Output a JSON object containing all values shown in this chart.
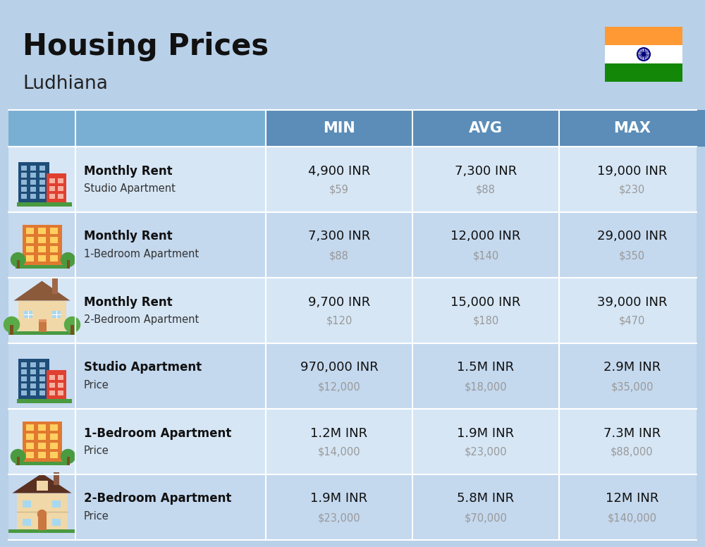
{
  "title": "Housing Prices",
  "subtitle": "Ludhiana",
  "bg_color": "#b8d0e8",
  "header_bg": "#5b8db8",
  "header_col01_bg": "#7aafd4",
  "row_bg_odd": "#d6e6f5",
  "row_bg_even": "#c4d8ee",
  "col_headers": [
    "MIN",
    "AVG",
    "MAX"
  ],
  "rows": [
    {
      "bold_label": "Monthly Rent",
      "sub_label": "Studio Apartment",
      "min_inr": "4,900 INR",
      "min_usd": "$59",
      "avg_inr": "7,300 INR",
      "avg_usd": "$88",
      "max_inr": "19,000 INR",
      "max_usd": "$230",
      "icon": "studio_blue"
    },
    {
      "bold_label": "Monthly Rent",
      "sub_label": "1-Bedroom Apartment",
      "min_inr": "7,300 INR",
      "min_usd": "$88",
      "avg_inr": "12,000 INR",
      "avg_usd": "$140",
      "max_inr": "29,000 INR",
      "max_usd": "$350",
      "icon": "apt_orange"
    },
    {
      "bold_label": "Monthly Rent",
      "sub_label": "2-Bedroom Apartment",
      "min_inr": "9,700 INR",
      "min_usd": "$120",
      "avg_inr": "15,000 INR",
      "avg_usd": "$180",
      "max_inr": "39,000 INR",
      "max_usd": "$470",
      "icon": "house_tan"
    },
    {
      "bold_label": "Studio Apartment",
      "sub_label": "Price",
      "min_inr": "970,000 INR",
      "min_usd": "$12,000",
      "avg_inr": "1.5M INR",
      "avg_usd": "$18,000",
      "max_inr": "2.9M INR",
      "max_usd": "$35,000",
      "icon": "studio_blue"
    },
    {
      "bold_label": "1-Bedroom Apartment",
      "sub_label": "Price",
      "min_inr": "1.2M INR",
      "min_usd": "$14,000",
      "avg_inr": "1.9M INR",
      "avg_usd": "$23,000",
      "max_inr": "7.3M INR",
      "max_usd": "$88,000",
      "icon": "apt_orange"
    },
    {
      "bold_label": "2-Bedroom Apartment",
      "sub_label": "Price",
      "min_inr": "1.9M INR",
      "min_usd": "$23,000",
      "avg_inr": "5.8M INR",
      "avg_usd": "$70,000",
      "max_inr": "12M INR",
      "max_usd": "$140,000",
      "icon": "house_brown"
    }
  ]
}
